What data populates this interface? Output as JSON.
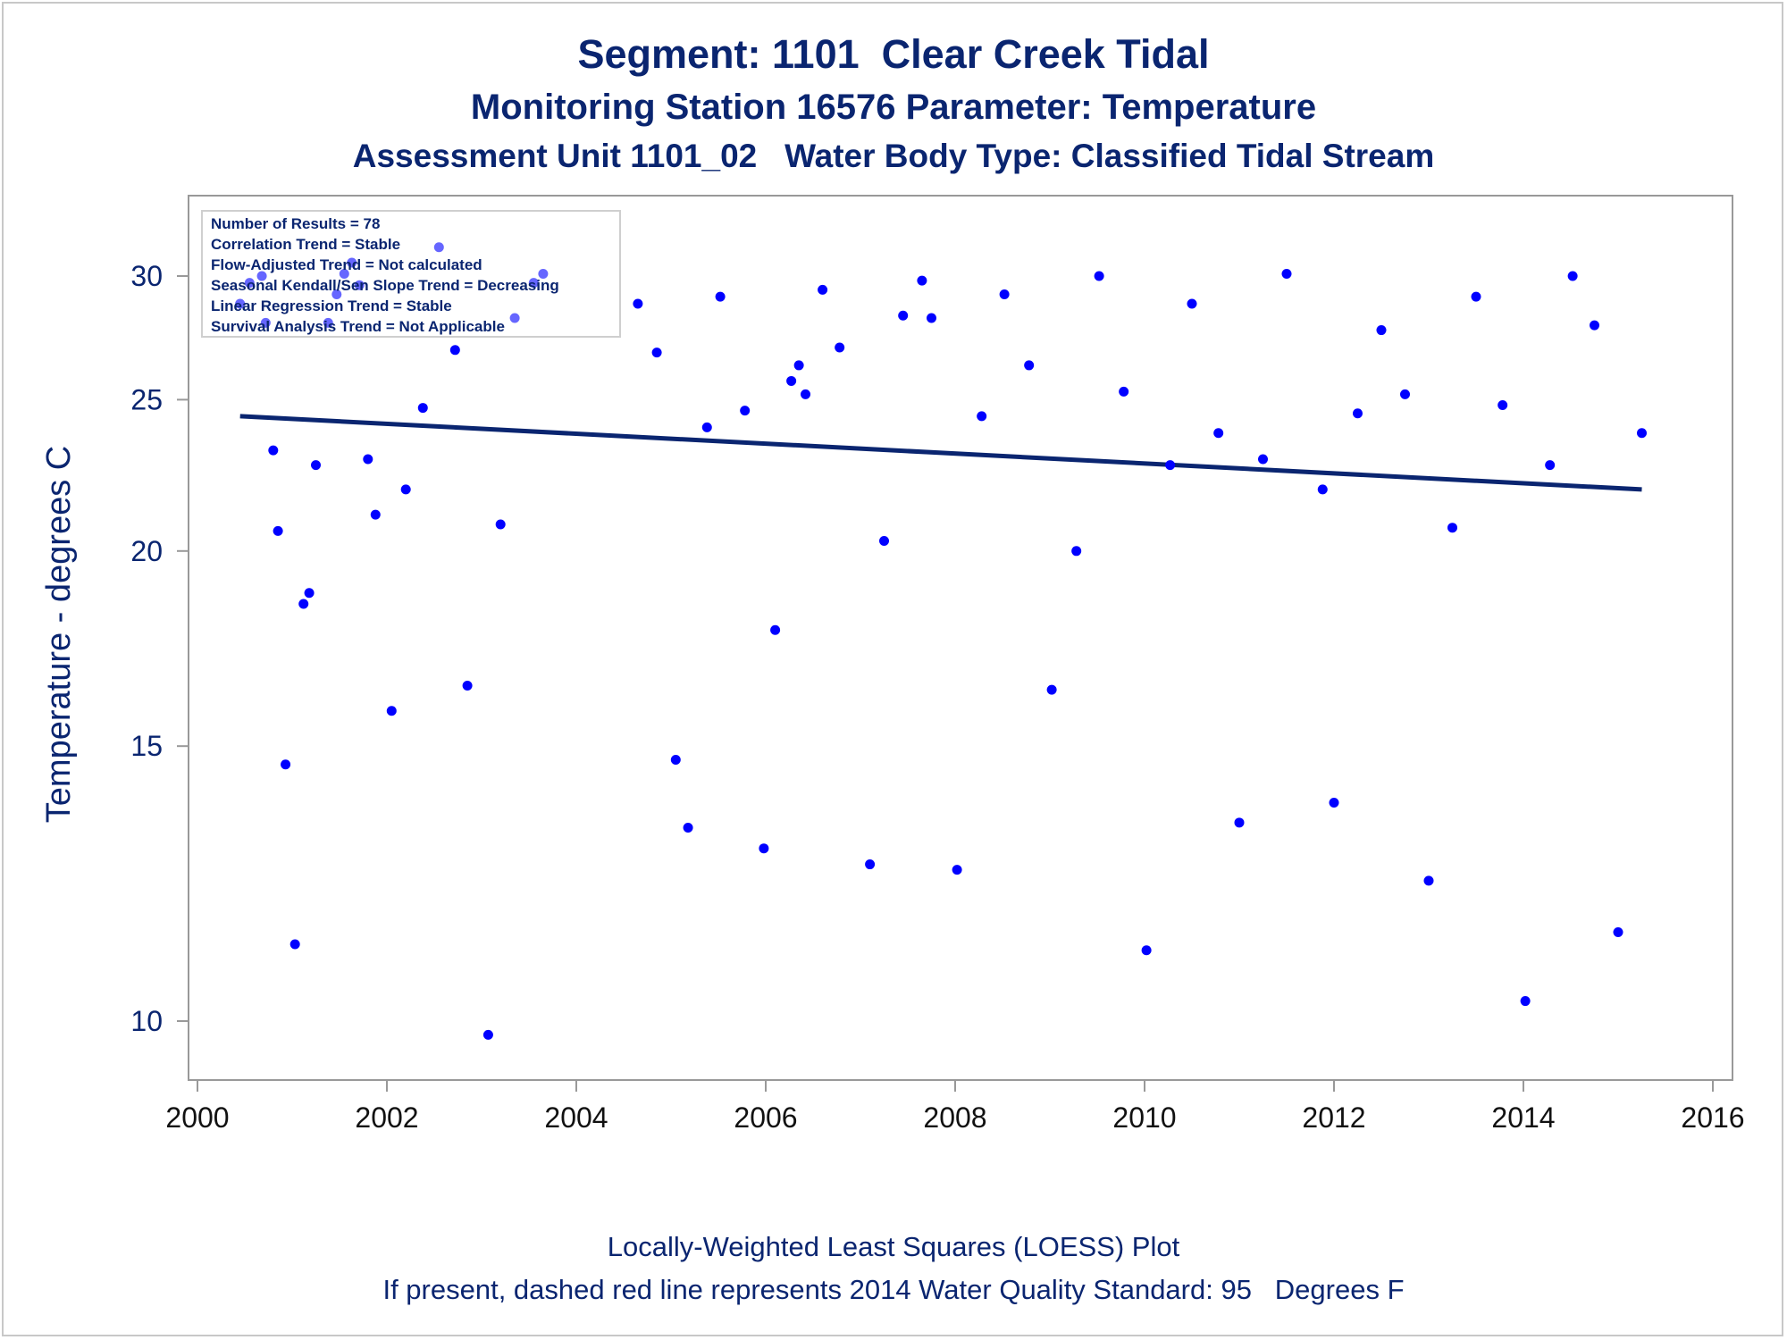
{
  "chart_data": {
    "type": "scatter",
    "title": "Segment: 1101  Clear Creek Tidal",
    "subtitle": "Monitoring Station 16576 Parameter: Temperature",
    "subtitle2": "Assessment Unit 1101_02   Water Body Type: Classified Tidal Stream",
    "ylabel": "Temperature - degrees C",
    "footnote1": "Locally-Weighted Least Squares (LOESS) Plot",
    "footnote2": "If present, dashed red line represents 2014 Water Quality Standard: 95   Degrees F",
    "xlim": [
      2000,
      2016
    ],
    "x_ticks": [
      "2000",
      "2002",
      "2004",
      "2006",
      "2008",
      "2010",
      "2012",
      "2014",
      "2016"
    ],
    "y_scale": "log",
    "y_ticks": [
      "10",
      "15",
      "20",
      "25",
      "30"
    ],
    "inset_lines": [
      "Number of Results = 78",
      "Correlation Trend = Stable",
      "Flow-Adjusted Trend = Not calculated",
      "Seasonal Kendall/Sen Slope Trend = Decreasing",
      "Linear Regression Trend = Stable",
      "Survival Analysis Trend = Not Applicable"
    ],
    "colors": {
      "points": "#0000ff",
      "trend_line": "#0a2570",
      "text": "#0a2570",
      "axis": "#999999"
    },
    "trend_line": [
      [
        2000.45,
        24.4
      ],
      [
        2015.25,
        21.9
      ]
    ],
    "points": [
      [
        2000.45,
        28.8
      ],
      [
        2000.55,
        29.7
      ],
      [
        2000.68,
        30.0
      ],
      [
        2000.72,
        28.0
      ],
      [
        2000.8,
        23.2
      ],
      [
        2000.85,
        20.6
      ],
      [
        2000.93,
        14.6
      ],
      [
        2001.03,
        11.2
      ],
      [
        2001.12,
        18.5
      ],
      [
        2001.18,
        18.8
      ],
      [
        2001.25,
        22.7
      ],
      [
        2001.38,
        28.0
      ],
      [
        2001.47,
        29.2
      ],
      [
        2001.55,
        30.1
      ],
      [
        2001.63,
        30.6
      ],
      [
        2001.71,
        29.6
      ],
      [
        2001.8,
        22.9
      ],
      [
        2001.88,
        21.1
      ],
      [
        2002.05,
        15.8
      ],
      [
        2002.2,
        21.9
      ],
      [
        2002.38,
        24.7
      ],
      [
        2002.55,
        31.3
      ],
      [
        2002.72,
        26.9
      ],
      [
        2002.85,
        16.4
      ],
      [
        2003.07,
        9.8
      ],
      [
        2003.2,
        20.8
      ],
      [
        2003.35,
        28.2
      ],
      [
        2003.55,
        29.7
      ],
      [
        2003.65,
        30.1
      ],
      [
        2004.65,
        28.8
      ],
      [
        2004.85,
        26.8
      ],
      [
        2005.05,
        14.7
      ],
      [
        2005.18,
        13.3
      ],
      [
        2005.38,
        24.0
      ],
      [
        2005.52,
        29.1
      ],
      [
        2005.78,
        24.6
      ],
      [
        2005.98,
        12.9
      ],
      [
        2006.1,
        17.8
      ],
      [
        2006.27,
        25.7
      ],
      [
        2006.35,
        26.3
      ],
      [
        2006.42,
        25.2
      ],
      [
        2006.6,
        29.4
      ],
      [
        2006.78,
        27.0
      ],
      [
        2007.1,
        12.6
      ],
      [
        2007.25,
        20.3
      ],
      [
        2007.45,
        28.3
      ],
      [
        2007.65,
        29.8
      ],
      [
        2007.75,
        28.2
      ],
      [
        2008.02,
        12.5
      ],
      [
        2008.28,
        24.4
      ],
      [
        2008.52,
        29.2
      ],
      [
        2008.78,
        26.3
      ],
      [
        2009.02,
        16.3
      ],
      [
        2009.28,
        20.0
      ],
      [
        2009.52,
        30.0
      ],
      [
        2009.78,
        25.3
      ],
      [
        2010.02,
        11.1
      ],
      [
        2010.27,
        22.7
      ],
      [
        2010.5,
        28.8
      ],
      [
        2010.78,
        23.8
      ],
      [
        2011.0,
        13.4
      ],
      [
        2011.25,
        22.9
      ],
      [
        2011.5,
        30.1
      ],
      [
        2011.88,
        21.9
      ],
      [
        2012.0,
        13.8
      ],
      [
        2012.25,
        24.5
      ],
      [
        2012.5,
        27.7
      ],
      [
        2012.75,
        25.2
      ],
      [
        2013.0,
        12.3
      ],
      [
        2013.25,
        20.7
      ],
      [
        2013.5,
        29.1
      ],
      [
        2013.78,
        24.8
      ],
      [
        2014.02,
        10.3
      ],
      [
        2014.28,
        22.7
      ],
      [
        2014.52,
        30.0
      ],
      [
        2014.75,
        27.9
      ],
      [
        2015.0,
        11.4
      ],
      [
        2015.25,
        23.8
      ]
    ]
  }
}
